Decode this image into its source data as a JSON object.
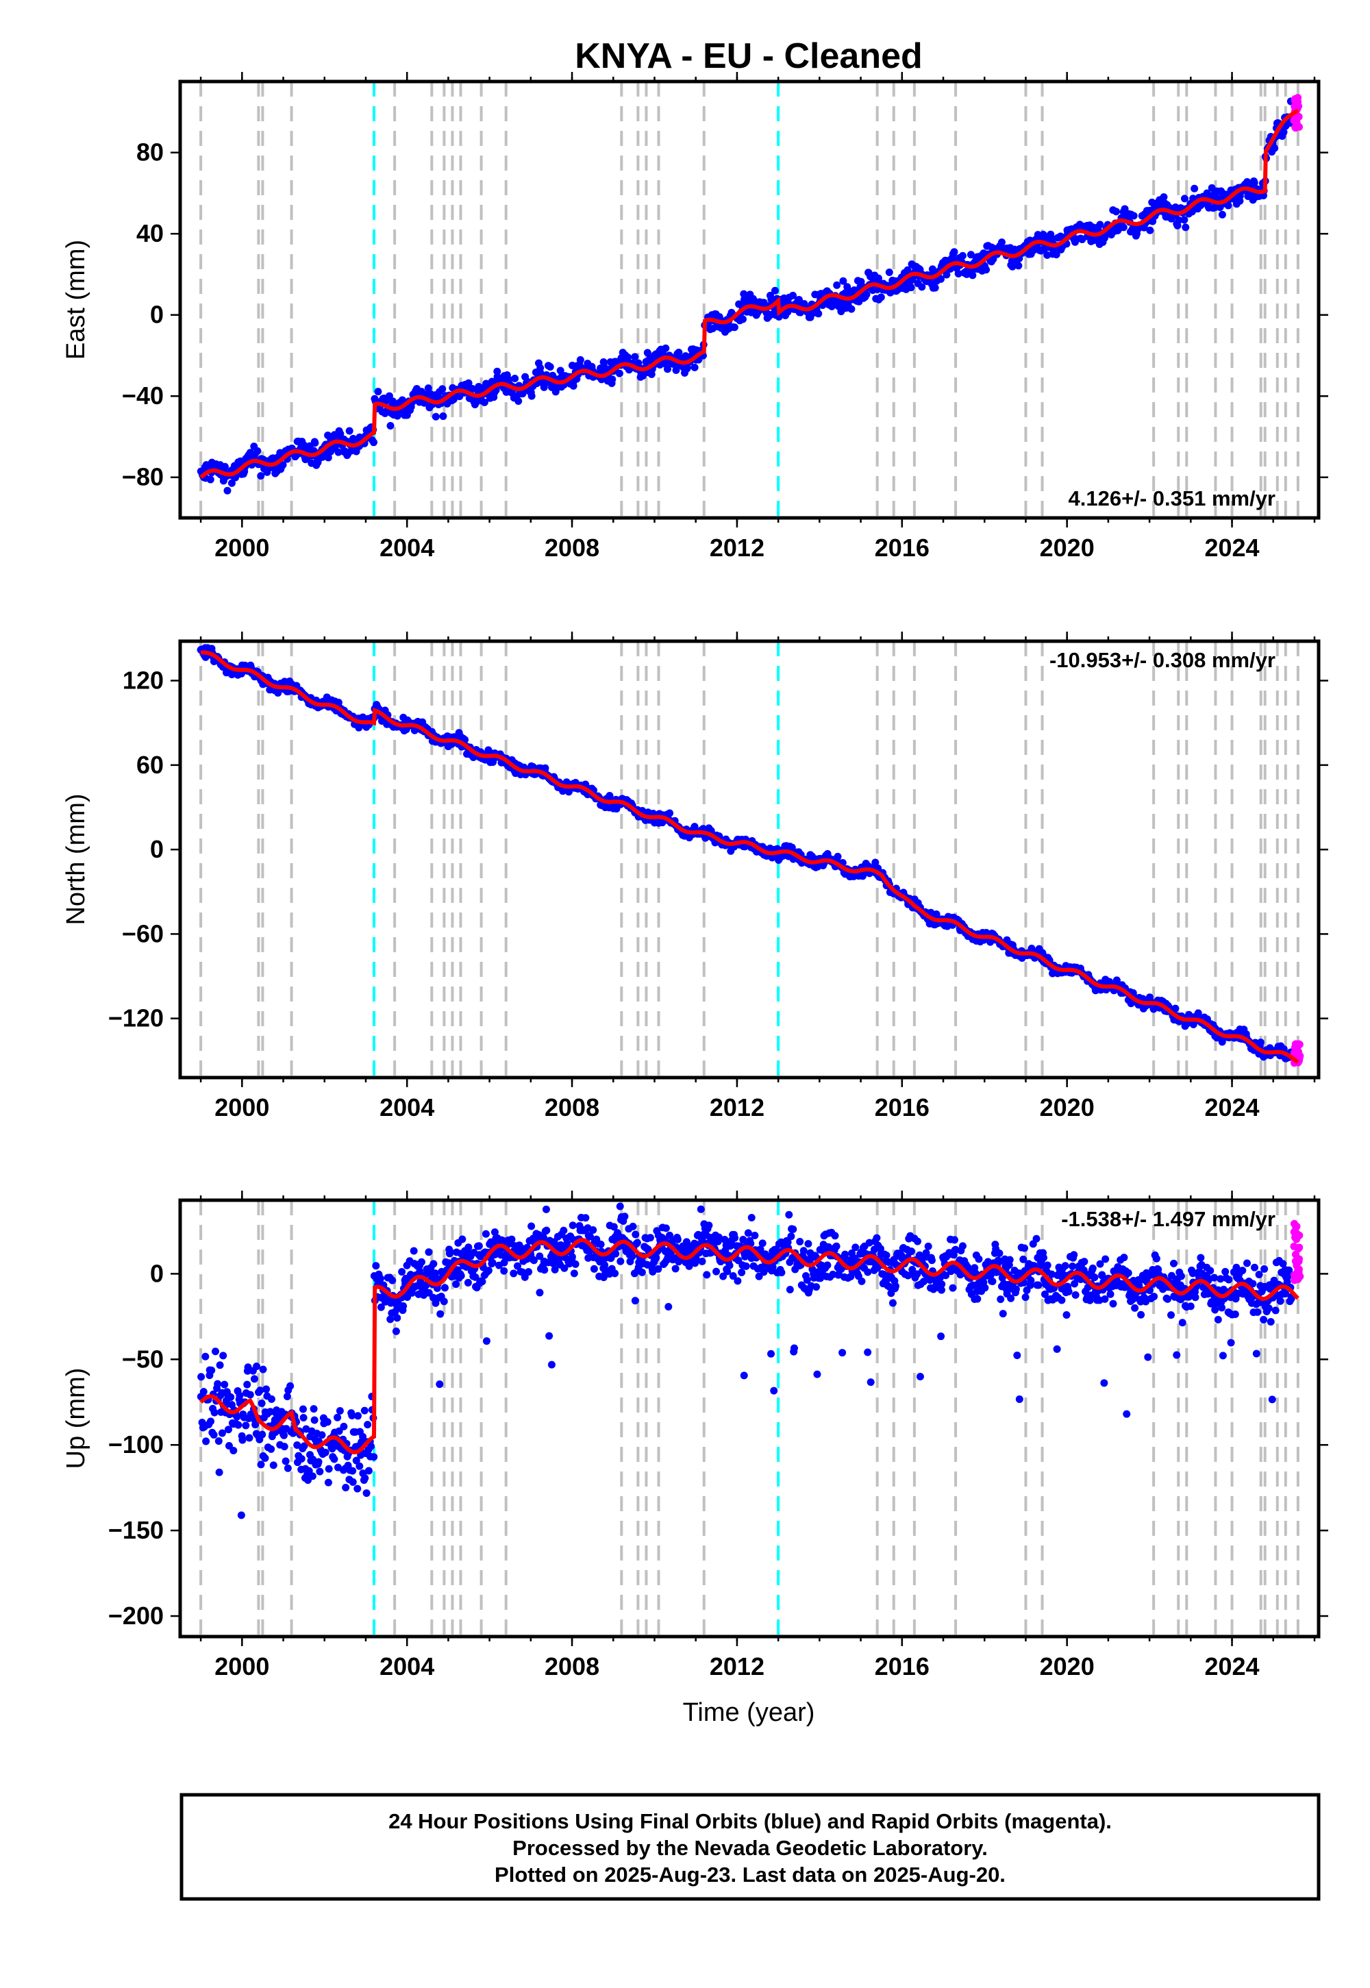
{
  "title": "KNYA  - EU - Cleaned",
  "xlabel": "Time (year)",
  "footer": {
    "line1": "24 Hour Positions Using Final Orbits (blue) and Rapid Orbits (magenta).",
    "line2": "Processed by the Nevada Geodetic Laboratory.",
    "line3": "Plotted on 2025-Aug-23. Last data on 2025-Aug-20."
  },
  "colors": {
    "final_orbits": "#0000ff",
    "rapid_orbits": "#ff00ff",
    "model": "#ff0000",
    "equipment_change": "#c0c0c0",
    "earthquake": "#00ffff"
  },
  "chart_data": [
    {
      "type": "scatter",
      "component": "East",
      "ylabel": "East (mm)",
      "rate_label": "4.126+/- 0.351 mm/yr",
      "xlim": [
        1998.5,
        2026.1
      ],
      "ylim": [
        -100,
        115
      ],
      "xticks": [
        2000,
        2004,
        2008,
        2012,
        2016,
        2020,
        2024
      ],
      "yticks": [
        -80,
        -40,
        0,
        40,
        80
      ],
      "trend": {
        "x": [
          1999.0,
          2003.2,
          2003.2,
          2011.2,
          2011.2,
          2013.0,
          2013.0,
          2024.8,
          2024.8,
          2025.6
        ],
        "y": [
          -80,
          -60,
          -46,
          -20,
          -5,
          7,
          1,
          63,
          82,
          102
        ]
      },
      "rapid_orbits_last": {
        "x": [
          2025.5,
          2025.65
        ],
        "y": [
          92,
          108
        ]
      }
    },
    {
      "type": "scatter",
      "component": "North",
      "ylabel": "North (mm)",
      "rate_label": "-10.953+/- 0.308 mm/yr",
      "xlim": [
        1998.5,
        2026.1
      ],
      "ylim": [
        -162,
        148
      ],
      "xticks": [
        2000,
        2004,
        2008,
        2012,
        2016,
        2020,
        2024
      ],
      "yticks": [
        -120,
        -60,
        0,
        60,
        120
      ],
      "trend": {
        "x": [
          1999.0,
          2003.2,
          2003.2,
          2011.2,
          2013.0,
          2015.5,
          2016.3,
          2024.8,
          2025.6
        ],
        "y": [
          140,
          88,
          97,
          10,
          -2,
          -18,
          -42,
          -142,
          -150
        ]
      },
      "rapid_orbits_last": {
        "x": [
          2025.5,
          2025.65
        ],
        "y": [
          -152,
          -138
        ]
      }
    },
    {
      "type": "scatter",
      "component": "Up",
      "ylabel": "Up (mm)",
      "rate_label": "-1.538+/- 1.497 mm/yr",
      "xlim": [
        1998.5,
        2026.1
      ],
      "ylim": [
        -212,
        43
      ],
      "xticks": [
        2000,
        2004,
        2008,
        2012,
        2016,
        2020,
        2024
      ],
      "yticks": [
        -200,
        -150,
        -100,
        -50,
        0
      ],
      "trend": {
        "x": [
          1999.0,
          2000.2,
          2000.4,
          2001.2,
          2001.3,
          2002.5,
          2003.2,
          2003.2,
          2004.0,
          2005.0,
          2006.0,
          2008.0,
          2012.0,
          2016.0,
          2020.0,
          2025.6
        ],
        "y": [
          -75,
          -78,
          -88,
          -85,
          -95,
          -101,
          -99,
          -12,
          -8,
          0,
          12,
          16,
          12,
          5,
          -3,
          -12
        ]
      },
      "rapid_orbits_last": {
        "x": [
          2025.5,
          2025.65
        ],
        "y": [
          -5,
          30
        ]
      }
    }
  ],
  "event_lines": {
    "equipment_years": [
      1999.0,
      2000.4,
      2000.5,
      2001.2,
      2003.7,
      2004.6,
      2004.9,
      2005.1,
      2005.3,
      2005.8,
      2006.4,
      2009.2,
      2009.6,
      2009.8,
      2010.1,
      2011.2,
      2015.4,
      2015.8,
      2016.3,
      2017.3,
      2019.0,
      2019.4,
      2022.1,
      2022.7,
      2022.9,
      2023.6,
      2024.0,
      2024.7,
      2024.8,
      2025.1,
      2025.3,
      2025.6
    ],
    "earthquake_years": [
      2003.2,
      2013.0
    ]
  }
}
